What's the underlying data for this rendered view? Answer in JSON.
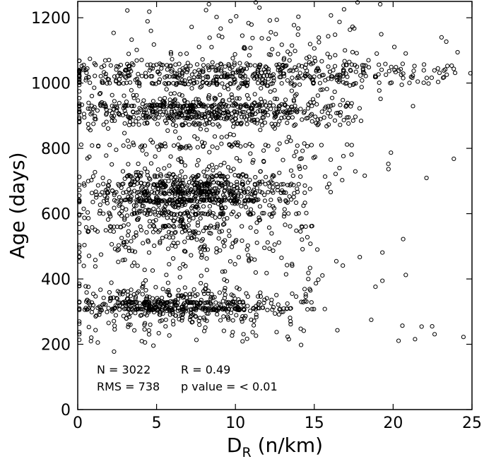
{
  "chart_data": {
    "type": "scatter",
    "xlabel_main": "D",
    "xlabel_sub": "R",
    "xlabel_unit": " (n/km)",
    "ylabel": "Age (days)",
    "xlim": [
      0,
      25
    ],
    "ylim": [
      0,
      1250
    ],
    "x_ticks": [
      0,
      5,
      10,
      15,
      20,
      25
    ],
    "y_ticks": [
      0,
      200,
      400,
      600,
      800,
      1000,
      1200
    ],
    "x_tick_labels": [
      "0",
      "5",
      "10",
      "15",
      "20",
      "25"
    ],
    "y_tick_labels": [
      "0",
      "200",
      "400",
      "600",
      "800",
      "1000",
      "1200"
    ],
    "grid": false,
    "marker": "open-circle",
    "stats": {
      "n": "N = 3022",
      "rms": "RMS = 738",
      "r": "R = 0.49",
      "p": "p value = < 0.01"
    },
    "clusters": [
      {
        "y_center": 320,
        "y_spread": 25,
        "x_mode": 6.5,
        "x_max": 15,
        "count": 520
      },
      {
        "y_center": 665,
        "y_spread": 40,
        "x_mode": 7,
        "x_max": 14.5,
        "count": 700
      },
      {
        "y_center": 560,
        "y_spread": 60,
        "x_mode": 6,
        "x_max": 15,
        "count": 300
      },
      {
        "y_center": 915,
        "y_spread": 28,
        "x_mode": 8,
        "x_max": 18,
        "count": 620
      },
      {
        "y_center": 1025,
        "y_spread": 25,
        "x_mode": 9,
        "x_max": 24,
        "count": 500
      },
      {
        "y_center": 810,
        "y_spread": 10,
        "x_mode": 7,
        "x_max": 15,
        "count": 60
      },
      {
        "y_center": 1100,
        "y_spread": 80,
        "x_mode": 12,
        "x_max": 25,
        "count": 120
      },
      {
        "y_center": 450,
        "y_spread": 60,
        "x_mode": 8,
        "x_max": 22,
        "count": 80
      },
      {
        "y_center": 240,
        "y_spread": 25,
        "x_mode": 6,
        "x_max": 23,
        "count": 60
      },
      {
        "y_center": 760,
        "y_spread": 50,
        "x_mode": 12,
        "x_max": 24,
        "count": 62
      }
    ]
  }
}
